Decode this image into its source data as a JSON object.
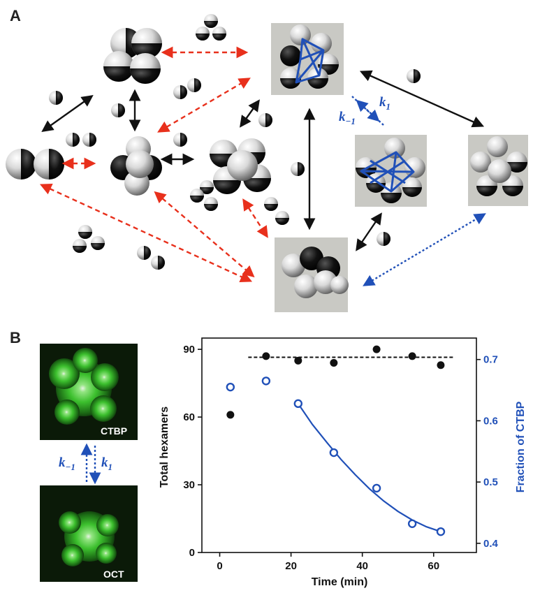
{
  "figure": {
    "panel_a_label": "A",
    "panel_b_label": "B",
    "rates": {
      "forward": "k",
      "forward_sub": "1",
      "reverse": "k",
      "reverse_sub": "−1"
    },
    "image_labels": {
      "top": "CTBP",
      "bottom": "OCT"
    },
    "colors": {
      "red_arrow": "#e8301c",
      "blue_arrow": "#2050b8",
      "black_arrow": "#111111",
      "gray_box": "#c9c9c4",
      "green_glow": "#39d12e"
    }
  },
  "chart_data": {
    "type": "scatter",
    "xlabel": "Time (min)",
    "ylabel": "Total hexamers",
    "y2label": "Fraction of CTBP",
    "xlim": [
      -5,
      72
    ],
    "ylim": [
      0,
      95
    ],
    "y2lim": [
      0.385,
      0.735
    ],
    "xticks": [
      0,
      20,
      40,
      60
    ],
    "yticks": [
      0,
      30,
      60,
      90
    ],
    "y2ticks": [
      0.4,
      0.5,
      0.6,
      0.7
    ],
    "series": [
      {
        "axis": "left",
        "style": "filled-black",
        "x": [
          3,
          13,
          22,
          32,
          44,
          54,
          62
        ],
        "y": [
          61,
          87,
          85,
          84,
          90,
          87,
          83
        ]
      },
      {
        "axis": "right",
        "style": "open-blue",
        "x": [
          3,
          13,
          22,
          32,
          44,
          54,
          62
        ],
        "y": [
          0.655,
          0.665,
          0.628,
          0.548,
          0.49,
          0.432,
          0.419
        ]
      }
    ],
    "reference_line": {
      "axis": "left",
      "y": 86.5,
      "x_range": [
        8,
        66
      ],
      "style": "dashed-black"
    },
    "fit_curve": {
      "axis": "right",
      "x": [
        22,
        26,
        30,
        34,
        38,
        42,
        46,
        50,
        54,
        58,
        62
      ],
      "y": [
        0.628,
        0.594,
        0.565,
        0.537,
        0.512,
        0.489,
        0.469,
        0.452,
        0.438,
        0.427,
        0.419
      ]
    }
  }
}
